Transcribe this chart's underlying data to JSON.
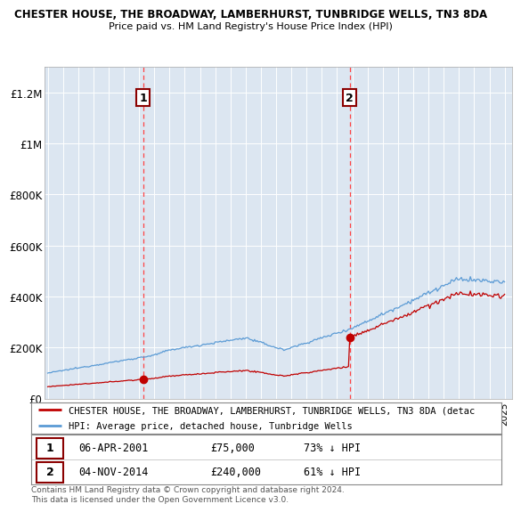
{
  "title1": "CHESTER HOUSE, THE BROADWAY, LAMBERHURST, TUNBRIDGE WELLS, TN3 8DA",
  "title2": "Price paid vs. HM Land Registry's House Price Index (HPI)",
  "sale1_year": 2001.27,
  "sale2_year": 2014.84,
  "sale1_price": 75000,
  "sale2_price": 240000,
  "legend_line1": "CHESTER HOUSE, THE BROADWAY, LAMBERHURST, TUNBRIDGE WELLS, TN3 8DA (detac",
  "legend_line2": "HPI: Average price, detached house, Tunbridge Wells",
  "sale1_date": "06-APR-2001",
  "sale2_date": "04-NOV-2014",
  "sale1_pct": "73% ↓ HPI",
  "sale2_pct": "61% ↓ HPI",
  "footer": "Contains HM Land Registry data © Crown copyright and database right 2024.\nThis data is licensed under the Open Government Licence v3.0.",
  "hpi_color": "#5b9bd5",
  "price_color": "#c00000",
  "vline_color": "#ff4444",
  "background_color": "#dce6f1",
  "ylim_max": 1300000,
  "xlim_min": 1994.8,
  "xlim_max": 2025.5
}
